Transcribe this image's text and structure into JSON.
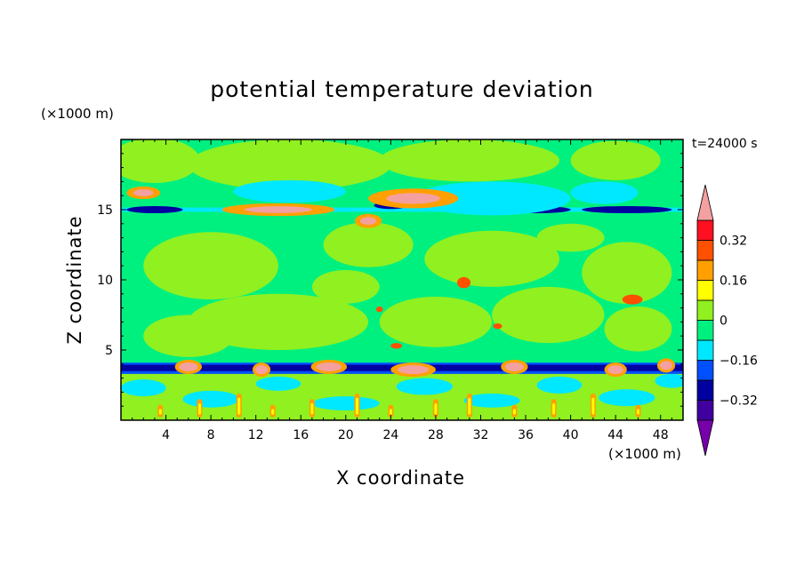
{
  "chart_data": {
    "type": "heatmap",
    "title": "potential temperature deviation",
    "xlabel": "X coordinate",
    "ylabel": "Z coordinate",
    "x_unit": "(×1000 m)",
    "y_unit": "(×1000 m)",
    "time_label": "t=24000 s",
    "xlim": [
      0,
      50
    ],
    "ylim": [
      0,
      20
    ],
    "x_ticks": [
      4,
      8,
      12,
      16,
      20,
      24,
      28,
      32,
      36,
      40,
      44,
      48
    ],
    "y_ticks": [
      5,
      10,
      15
    ],
    "colorbar": {
      "levels": [
        -0.4,
        -0.32,
        -0.24,
        -0.16,
        -0.08,
        0,
        0.08,
        0.16,
        0.24,
        0.32,
        0.4
      ],
      "tick_labels": [
        "0.32",
        "0.16",
        "0",
        "−0.16",
        "−0.32"
      ],
      "tick_values": [
        0.32,
        0.16,
        0,
        -0.16,
        -0.32
      ],
      "colors_low_to_high": [
        "#7700aa",
        "#4000a0",
        "#0000a0",
        "#0050ff",
        "#00e8ff",
        "#00f080",
        "#90f020",
        "#ffff00",
        "#ffa000",
        "#ff5000",
        "#ff1020",
        "#f4a0a0"
      ]
    },
    "background_color": "#00f080"
  }
}
